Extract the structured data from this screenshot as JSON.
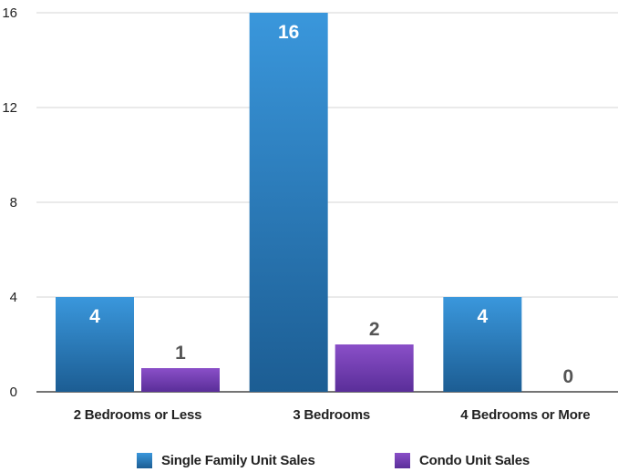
{
  "chart_data": {
    "type": "bar",
    "categories": [
      "2 Bedrooms or Less",
      "3 Bedrooms",
      "4 Bedrooms or More"
    ],
    "series": [
      {
        "name": "Single Family Unit Sales",
        "values": [
          4,
          16,
          4
        ],
        "color": "#2f86d1"
      },
      {
        "name": "Condo Unit Sales",
        "values": [
          1,
          2,
          0
        ],
        "color": "#7a45b8"
      }
    ],
    "y_ticks": [
      "0",
      "4",
      "8",
      "12",
      "16"
    ],
    "ylim": [
      0,
      16
    ],
    "grid": true,
    "legend_position": "bottom"
  }
}
